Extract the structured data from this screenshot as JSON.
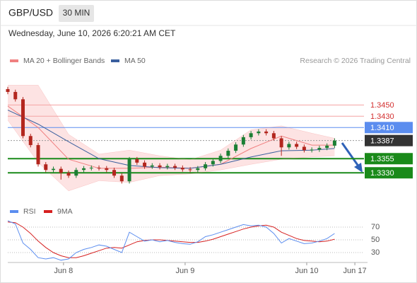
{
  "chart_data": {
    "type": "candlestick",
    "title": "GBP/USD",
    "timeframe": "30 MIN",
    "timestamp": "Wednesday, June 10, 2026 6:20:21 AM CET",
    "attribution": "Research © 2026 Trading Central",
    "x": [
      -11,
      -9.5,
      -8,
      -6.5,
      -5,
      -3.5,
      -2,
      -0.5,
      1,
      2.5,
      4,
      5.5,
      7,
      8.5,
      10,
      11.5,
      13,
      14.5,
      16,
      17.5,
      19,
      20.5,
      22,
      23.5,
      25,
      26.5,
      28,
      29.5,
      31,
      32.5,
      34,
      35.5,
      37,
      38.5,
      40,
      41.5,
      43,
      44.5,
      46,
      47.5,
      49,
      50.5,
      52,
      53.5
    ],
    "open": [
      1.3478,
      1.3473,
      1.346,
      1.3395,
      1.3379,
      1.3345,
      1.3335,
      1.3337,
      1.333,
      1.3325,
      1.3335,
      1.3338,
      1.3339,
      1.3338,
      1.3335,
      1.3325,
      1.3315,
      1.3354,
      1.3348,
      1.3341,
      1.3343,
      1.334,
      1.3342,
      1.3339,
      1.3336,
      1.3335,
      1.3338,
      1.3345,
      1.3351,
      1.336,
      1.3369,
      1.338,
      1.3393,
      1.34,
      1.3403,
      1.34,
      1.3391,
      1.3375,
      1.3381,
      1.3376,
      1.337,
      1.3371,
      1.3374,
      1.3378
    ],
    "high": [
      1.3482,
      1.3477,
      1.3464,
      1.3399,
      1.3383,
      1.3349,
      1.3341,
      1.3341,
      1.3334,
      1.3339,
      1.3342,
      1.3343,
      1.3343,
      1.3342,
      1.3339,
      1.3329,
      1.3358,
      1.3358,
      1.3352,
      1.3347,
      1.3347,
      1.3346,
      1.3346,
      1.3343,
      1.334,
      1.3342,
      1.3349,
      1.3355,
      1.3364,
      1.3373,
      1.3384,
      1.3397,
      1.3404,
      1.3407,
      1.3407,
      1.3404,
      1.3395,
      1.3385,
      1.3385,
      1.338,
      1.3375,
      1.3378,
      1.3382,
      1.3391
    ],
    "low": [
      1.3469,
      1.3456,
      1.3391,
      1.3375,
      1.3341,
      1.3331,
      1.3331,
      1.3318,
      1.3321,
      1.3321,
      1.3331,
      1.3334,
      1.3334,
      1.3331,
      1.3321,
      1.3311,
      1.3311,
      1.3344,
      1.3337,
      1.3337,
      1.3336,
      1.3336,
      1.3335,
      1.3332,
      1.3331,
      1.3331,
      1.3334,
      1.3341,
      1.3347,
      1.3356,
      1.3365,
      1.3376,
      1.3389,
      1.3396,
      1.3396,
      1.3387,
      1.336,
      1.3371,
      1.3372,
      1.3366,
      1.3366,
      1.3367,
      1.337,
      1.3374
    ],
    "close": [
      1.3473,
      1.346,
      1.3395,
      1.3379,
      1.3345,
      1.3335,
      1.3337,
      1.333,
      1.3325,
      1.3335,
      1.3338,
      1.3339,
      1.3338,
      1.3335,
      1.3325,
      1.3315,
      1.3354,
      1.3348,
      1.3341,
      1.3343,
      1.334,
      1.3342,
      1.3339,
      1.3336,
      1.3335,
      1.3338,
      1.3345,
      1.3351,
      1.336,
      1.3369,
      1.338,
      1.3393,
      1.34,
      1.3403,
      1.34,
      1.3391,
      1.3375,
      1.3381,
      1.3376,
      1.337,
      1.3371,
      1.3374,
      1.3378,
      1.3387
    ],
    "up_color": "#1b7f34",
    "down_color": "#b3261e",
    "xlim": [
      -11,
      60
    ],
    "xticks": [
      {
        "value": 0,
        "label": "Jun 8"
      },
      {
        "value": 24,
        "label": "Jun 9"
      },
      {
        "value": 48,
        "label": "Jun 10"
      },
      {
        "value": 57.5,
        "label": "Jun 17"
      }
    ],
    "ylim": [
      1.3279,
      1.3548
    ],
    "overlays": {
      "x": [
        -11,
        -5,
        1,
        7,
        13,
        19,
        25,
        31,
        37,
        43,
        49,
        53.5
      ],
      "series": [
        {
          "name": "MA 20 + Bollinger Bands",
          "color": "#f08080",
          "band_color": "#fde3e3",
          "values": [
            1.3448,
            1.341,
            1.3354,
            1.3338,
            1.3338,
            1.334,
            1.3338,
            1.3345,
            1.3373,
            1.3395,
            1.3379,
            1.3379
          ],
          "upper": [
            1.3485,
            1.3485,
            1.3398,
            1.3363,
            1.337,
            1.336,
            1.3353,
            1.337,
            1.3406,
            1.3413,
            1.34,
            1.3391
          ],
          "lower": [
            1.3423,
            1.3348,
            1.3298,
            1.3316,
            1.3313,
            1.3325,
            1.3328,
            1.3335,
            1.3345,
            1.3354,
            1.3358,
            1.336
          ]
        },
        {
          "name": "MA 50",
          "color": "#3a5f9e",
          "values": [
            1.3441,
            1.3416,
            1.3385,
            1.3355,
            1.3343,
            1.3339,
            1.3338,
            1.3345,
            1.3358,
            1.3369,
            1.337,
            1.3373
          ]
        }
      ]
    },
    "levels": [
      {
        "value": 1.345,
        "label": "1.3450",
        "color": "#f4a3a3",
        "text_color": "#d32f2f",
        "box": false
      },
      {
        "value": 1.343,
        "label": "1.3430",
        "color": "#f4a3a3",
        "text_color": "#d32f2f",
        "box": false
      },
      {
        "value": 1.341,
        "label": "1.3410",
        "color": "#5b8def",
        "text_color": "#ffffff",
        "box": true
      },
      {
        "value": 1.3387,
        "color": "#333333",
        "text_color": "#ffffff",
        "box": true,
        "dotted": true
      },
      {
        "value": 1.3355,
        "color": "#1a8a1a",
        "text_color": "#ffffff",
        "box": true
      },
      {
        "value": 1.333,
        "label": "1.3330",
        "color": "#1a8a1a",
        "text_color": "#ffffff",
        "box": true
      }
    ],
    "rsi": {
      "type": "line",
      "ylim": [
        15,
        85
      ],
      "yticks": [
        70,
        50,
        30
      ],
      "series": [
        {
          "name": "RSI",
          "color": "#5b8def",
          "values": [
            80,
            75,
            45,
            35,
            22,
            20,
            22,
            18,
            20,
            30,
            35,
            38,
            42,
            40,
            35,
            30,
            62,
            55,
            48,
            50,
            47,
            49,
            46,
            44,
            43,
            47,
            55,
            58,
            62,
            66,
            70,
            74,
            72,
            73,
            70,
            60,
            45,
            52,
            48,
            44,
            45,
            48,
            52,
            60
          ]
        },
        {
          "name": "9MA",
          "color": "#d62020",
          "values": [
            78,
            77,
            70,
            60,
            48,
            38,
            30,
            25,
            22,
            22,
            25,
            29,
            33,
            37,
            38,
            37,
            42,
            47,
            49,
            50,
            50,
            49,
            48,
            47,
            46,
            46,
            48,
            51,
            55,
            59,
            63,
            67,
            70,
            72,
            73,
            70,
            62,
            57,
            52,
            49,
            48,
            47,
            48,
            51
          ]
        }
      ]
    }
  }
}
